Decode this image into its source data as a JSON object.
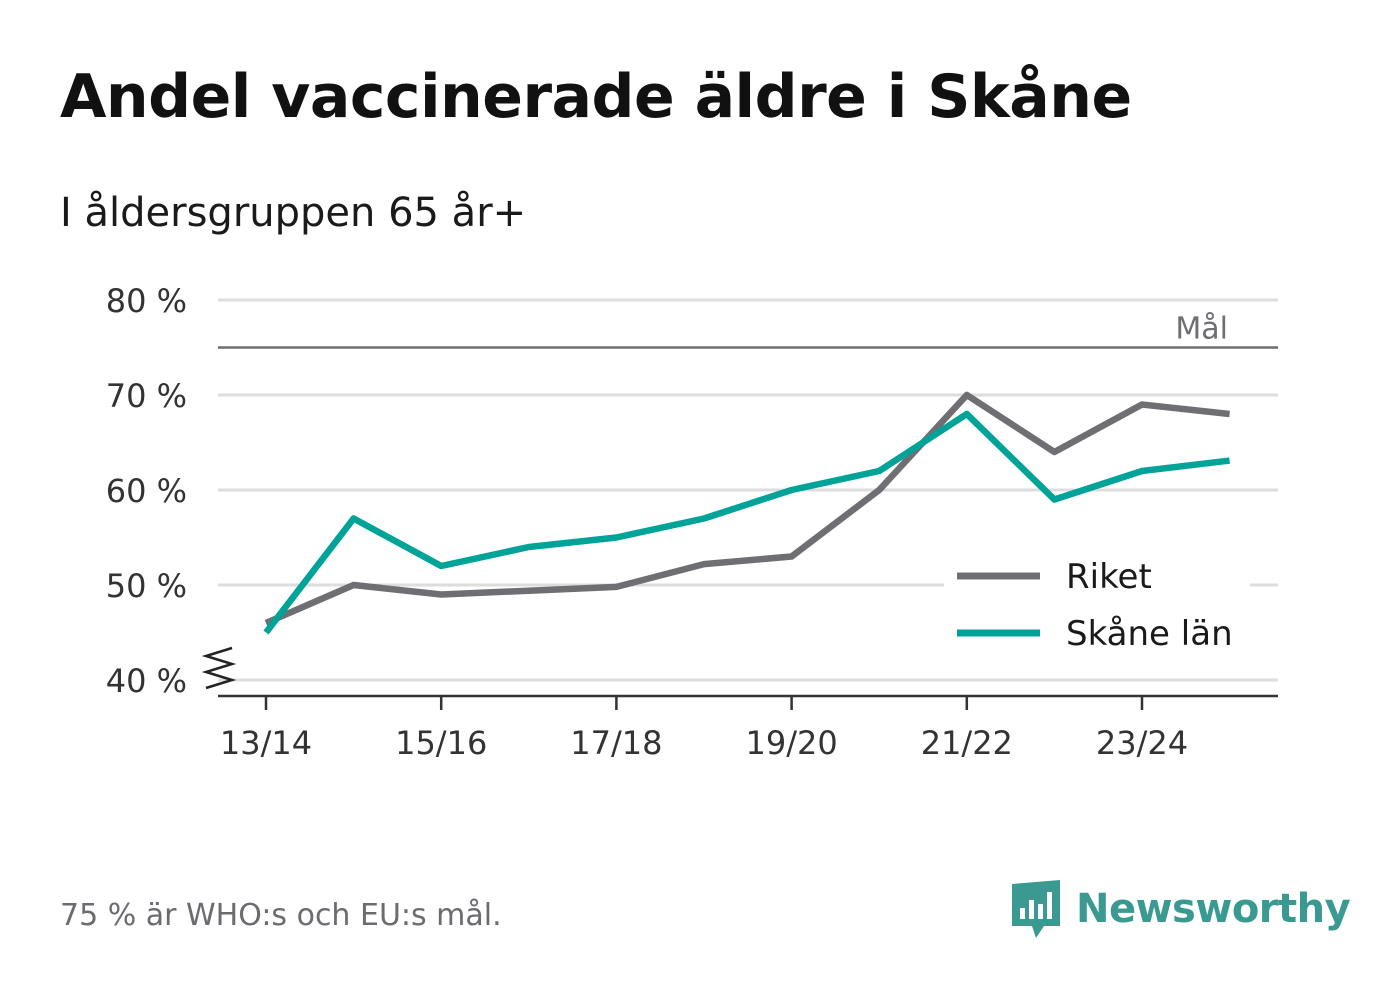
{
  "title": "Andel vaccinerade äldre i Skåne",
  "subtitle": "I åldersgruppen 65 år+",
  "footnote": "75 % är WHO:s och EU:s mål.",
  "brand": {
    "name": "Newsworthy",
    "logo_icon": "newsworthy-chart-bubble-icon",
    "color": "#3a9a92"
  },
  "colors": {
    "riket": "#6f6e73",
    "skane": "#00a398",
    "grid": "#dddddd",
    "target": "#6f6e73"
  },
  "chart_data": {
    "type": "line",
    "title": "Andel vaccinerade äldre i Skåne",
    "subtitle": "I åldersgruppen 65 år+",
    "x": [
      "13/14",
      "14/15",
      "15/16",
      "16/17",
      "17/18",
      "18/19",
      "19/20",
      "20/21",
      "21/22",
      "22/23",
      "23/24",
      "24/25"
    ],
    "x_tick_labels": [
      "13/14",
      "15/16",
      "17/18",
      "19/20",
      "21/22",
      "23/24"
    ],
    "y_tick_values": [
      40,
      50,
      60,
      70,
      80
    ],
    "y_tick_labels": [
      "40 %",
      "50 %",
      "60 %",
      "70 %",
      "80 %"
    ],
    "ylim": [
      38.3,
      80
    ],
    "y_axis_break": true,
    "grid": true,
    "legend_position": "bottom-right",
    "reference_line": {
      "value": 75,
      "label": "Mål"
    },
    "series": [
      {
        "name": "Riket",
        "values": [
          46.0,
          50.0,
          49.0,
          49.4,
          49.8,
          52.2,
          53.0,
          60.0,
          70.0,
          64.0,
          69.0,
          68.0
        ]
      },
      {
        "name": "Skåne län",
        "values": [
          45.0,
          57.0,
          52.0,
          54.0,
          55.0,
          57.0,
          60.0,
          62.0,
          68.0,
          59.0,
          62.0,
          63.1
        ]
      }
    ]
  }
}
